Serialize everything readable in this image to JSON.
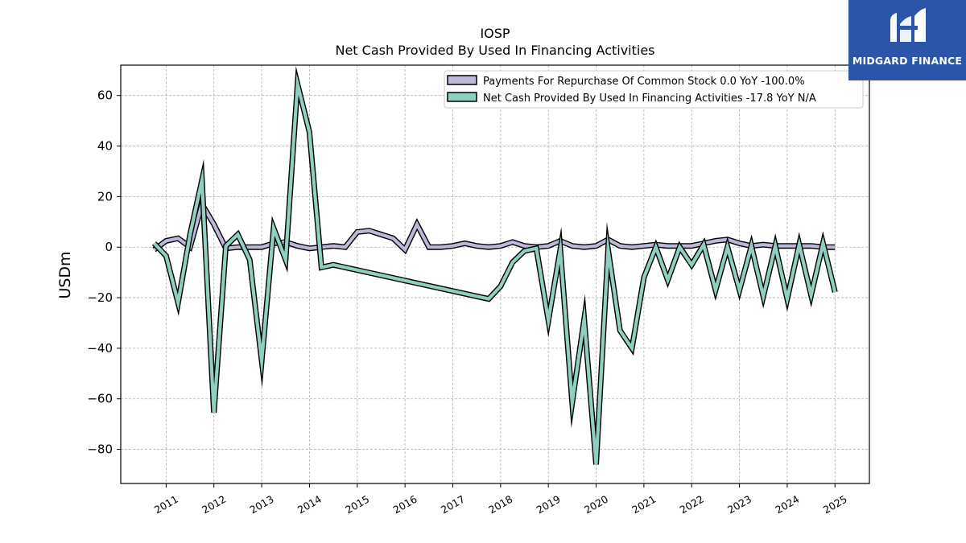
{
  "brand": {
    "name": "MIDGARD FINANCE",
    "color": "#2c55a8"
  },
  "chart_data": {
    "type": "line",
    "title": "IOSP",
    "subtitle": "Net Cash Provided By Used In Financing Activities",
    "ylabel": "USDm",
    "xlabel": "",
    "ylim": [
      -93.5,
      72
    ],
    "xlim": [
      2010.05,
      2025.72
    ],
    "grid": true,
    "legend_position": "top-right",
    "x_ticks": [
      "2011",
      "2012",
      "2013",
      "2014",
      "2015",
      "2016",
      "2017",
      "2018",
      "2019",
      "2020",
      "2021",
      "2022",
      "2023",
      "2024",
      "2025"
    ],
    "y_ticks": [
      60,
      40,
      20,
      0,
      -20,
      -40,
      -60,
      -80
    ],
    "series": [
      {
        "name": "Payments For Repurchase Of Common Stock  0.0 YoY -100.0%",
        "color": "#bcb8d9",
        "points": [
          [
            2010.75,
            -1
          ],
          [
            2011.0,
            2.5
          ],
          [
            2011.25,
            3.5
          ],
          [
            2011.5,
            0
          ],
          [
            2011.75,
            17
          ],
          [
            2012.0,
            9
          ],
          [
            2012.25,
            -0.5
          ],
          [
            2012.5,
            0
          ],
          [
            2012.75,
            0
          ],
          [
            2013.0,
            0
          ],
          [
            2013.25,
            1.5
          ],
          [
            2013.5,
            2
          ],
          [
            2013.75,
            0.5
          ],
          [
            2014.0,
            -0.5
          ],
          [
            2014.25,
            0
          ],
          [
            2014.5,
            0.5
          ],
          [
            2014.75,
            0
          ],
          [
            2015.0,
            6
          ],
          [
            2015.25,
            6.5
          ],
          [
            2015.5,
            5
          ],
          [
            2015.75,
            3.5
          ],
          [
            2016.0,
            -1
          ],
          [
            2016.25,
            9
          ],
          [
            2016.5,
            0
          ],
          [
            2016.75,
            0
          ],
          [
            2017.0,
            0.5
          ],
          [
            2017.25,
            1.5
          ],
          [
            2017.5,
            0.5
          ],
          [
            2017.75,
            0
          ],
          [
            2018.0,
            0.5
          ],
          [
            2018.25,
            2
          ],
          [
            2018.5,
            0.5
          ],
          [
            2018.75,
            0
          ],
          [
            2019.0,
            0.5
          ],
          [
            2019.25,
            2.5
          ],
          [
            2019.5,
            0.5
          ],
          [
            2019.75,
            0
          ],
          [
            2020.0,
            0.5
          ],
          [
            2020.25,
            3
          ],
          [
            2020.5,
            0.5
          ],
          [
            2020.75,
            0
          ],
          [
            2021.0,
            0.5
          ],
          [
            2021.25,
            1
          ],
          [
            2021.5,
            0.5
          ],
          [
            2021.75,
            0.5
          ],
          [
            2022.0,
            0.5
          ],
          [
            2022.25,
            1.5
          ],
          [
            2022.5,
            2.5
          ],
          [
            2022.75,
            3
          ],
          [
            2023.0,
            1.5
          ],
          [
            2023.25,
            0.5
          ],
          [
            2023.5,
            1
          ],
          [
            2023.75,
            0.5
          ],
          [
            2024.0,
            0.5
          ],
          [
            2024.25,
            0.5
          ],
          [
            2024.5,
            0.5
          ],
          [
            2024.75,
            0
          ],
          [
            2025.0,
            0
          ]
        ]
      },
      {
        "name": "Net Cash Provided By Used In Financing Activities  -17.8 YoY N/A",
        "color": "#8ecfc0",
        "points": [
          [
            2010.75,
            1.5
          ],
          [
            2011.0,
            -3.5
          ],
          [
            2011.25,
            -22
          ],
          [
            2011.5,
            5
          ],
          [
            2011.75,
            26.5
          ],
          [
            2012.0,
            -65.5
          ],
          [
            2012.25,
            0.5
          ],
          [
            2012.5,
            5
          ],
          [
            2012.75,
            -5
          ],
          [
            2013.0,
            -45
          ],
          [
            2013.25,
            7.5
          ],
          [
            2013.5,
            -5
          ],
          [
            2013.75,
            64.5
          ],
          [
            2014.0,
            45.5
          ],
          [
            2014.25,
            -8
          ],
          [
            2014.5,
            -7
          ],
          [
            2017.75,
            -20.5
          ],
          [
            2018.0,
            -15.5
          ],
          [
            2018.25,
            -6
          ],
          [
            2018.5,
            -1.5
          ],
          [
            2018.75,
            -0.5
          ],
          [
            2019.0,
            -29
          ],
          [
            2019.25,
            -1
          ],
          [
            2019.5,
            -61.5
          ],
          [
            2019.75,
            -28.5
          ],
          [
            2020.0,
            -86
          ],
          [
            2020.25,
            -1
          ],
          [
            2020.5,
            -33
          ],
          [
            2020.75,
            -40
          ],
          [
            2021.0,
            -12
          ],
          [
            2021.25,
            0
          ],
          [
            2021.5,
            -13
          ],
          [
            2021.75,
            0
          ],
          [
            2022.0,
            -7
          ],
          [
            2022.25,
            1
          ],
          [
            2022.5,
            -17
          ],
          [
            2022.75,
            0
          ],
          [
            2023.0,
            -17
          ],
          [
            2023.25,
            0.5
          ],
          [
            2023.5,
            -19.5
          ],
          [
            2023.75,
            0.5
          ],
          [
            2024.0,
            -20.5
          ],
          [
            2024.25,
            1
          ],
          [
            2024.5,
            -19
          ],
          [
            2024.75,
            1.5
          ],
          [
            2025.0,
            -17.8
          ]
        ]
      }
    ]
  }
}
